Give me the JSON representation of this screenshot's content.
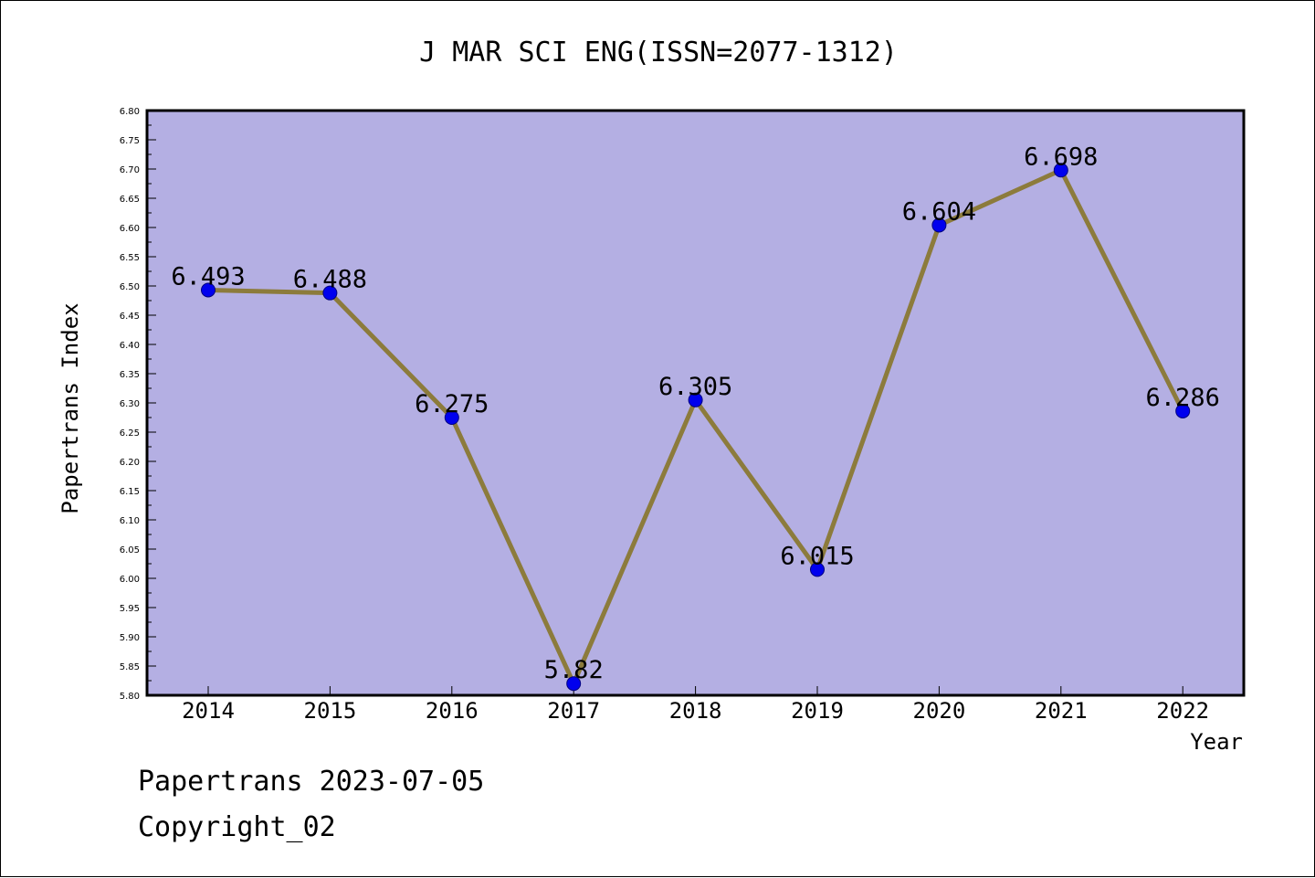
{
  "colors": {
    "plot_background": "#b4afe3",
    "line": "#8c7b3c",
    "marker": "#0000ee",
    "axis": "#000000"
  },
  "footer": {
    "line1": "Papertrans 2023-07-05",
    "line2": "Copyright_02"
  },
  "chart_data": {
    "type": "line",
    "title": "J MAR SCI ENG(ISSN=2077-1312)",
    "xlabel": "Year",
    "ylabel": "Papertrans Index",
    "x": [
      "2014",
      "2015",
      "2016",
      "2017",
      "2018",
      "2019",
      "2020",
      "2021",
      "2022"
    ],
    "series": [
      {
        "values": [
          6.493,
          6.488,
          6.275,
          5.82,
          6.305,
          6.015,
          6.604,
          6.698,
          6.286
        ],
        "labels": [
          "6.493",
          "6.488",
          "6.275",
          "5.82",
          "6.305",
          "6.015",
          "6.604",
          "6.698",
          "6.286"
        ]
      }
    ],
    "ylim": [
      5.8,
      6.8
    ],
    "ytick_step": 0.05,
    "grid": false,
    "legend": "none"
  }
}
